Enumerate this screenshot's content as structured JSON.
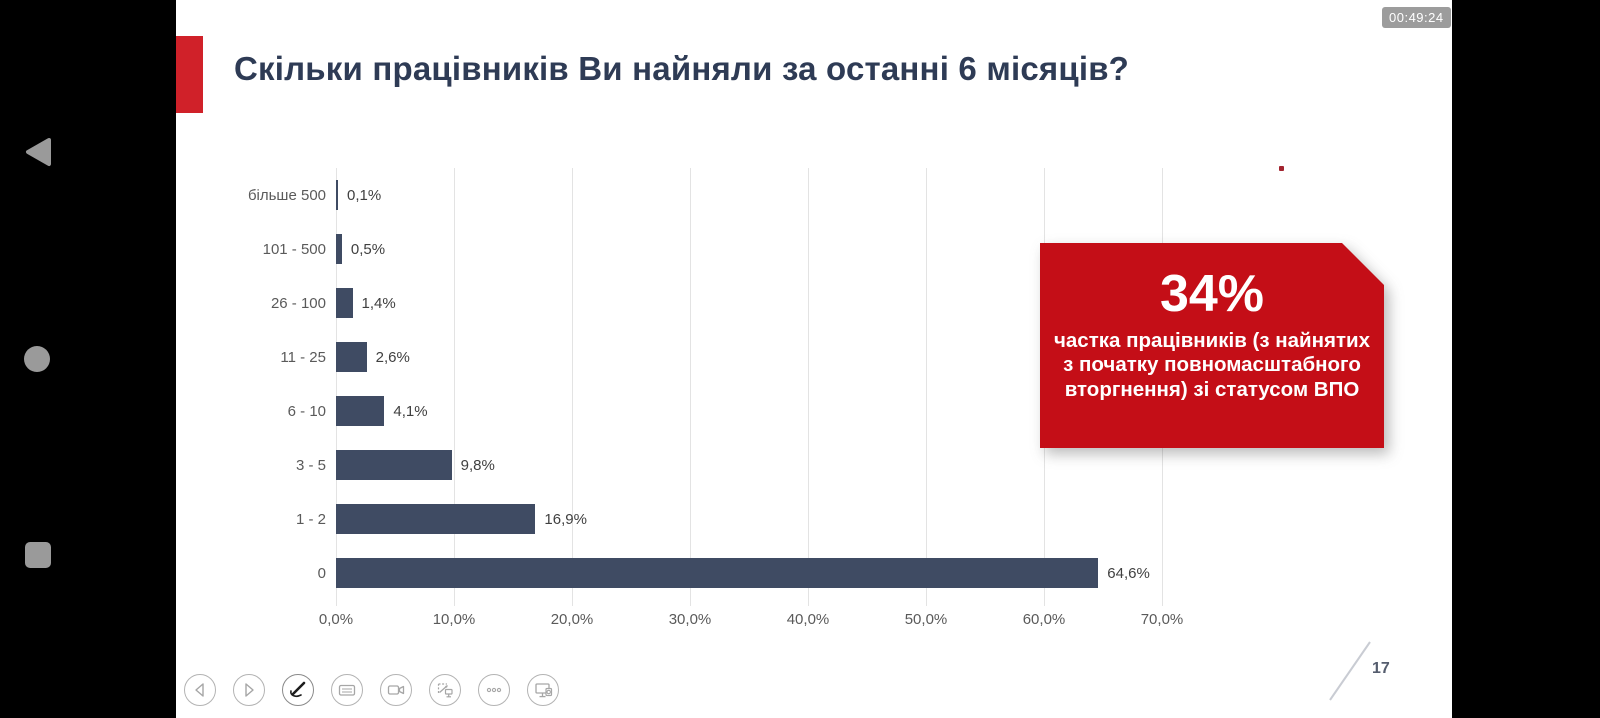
{
  "device": {
    "clock": "00:49:24",
    "page_number": "17",
    "nav": {
      "back": "back",
      "home": "home",
      "recents": "recents"
    }
  },
  "slide": {
    "title": "Скільки працівників Ви найняли за останні 6 місяців?"
  },
  "chart_data": {
    "type": "bar",
    "orientation": "horizontal",
    "title": "Скільки працівників Ви найняли за останні 6 місяців?",
    "categories": [
      "більше 500",
      "101 - 500",
      "26 - 100",
      "11 - 25",
      "6 - 10",
      "3 - 5",
      "1 - 2",
      "0"
    ],
    "values": [
      0.1,
      0.5,
      1.4,
      2.6,
      4.1,
      9.8,
      16.9,
      64.6
    ],
    "value_labels": [
      "0,1%",
      "0,5%",
      "1,4%",
      "2,6%",
      "4,1%",
      "9,8%",
      "16,9%",
      "64,6%"
    ],
    "x_tick_labels": [
      "0,0%",
      "10,0%",
      "20,0%",
      "30,0%",
      "40,0%",
      "50,0%",
      "60,0%",
      "70,0%"
    ],
    "xlim": [
      0,
      70
    ],
    "grid": true,
    "legend": false,
    "bar_color": "#3f4b63"
  },
  "callout": {
    "headline": "34%",
    "body": "частка працівників (з найнятих з початку повномасштабного вторгнення) ",
    "body_bold": "зі статусом ВПО"
  },
  "toolbar": {
    "buttons": [
      "previous-slide",
      "next-slide",
      "pen-tool",
      "keyboard",
      "camera",
      "present-pointer",
      "more-options",
      "cast-to-screen"
    ]
  },
  "colors": {
    "bar": "#3f4b63",
    "title": "#2e3b55",
    "accent_red": "#d02129",
    "callout_red": "#c40e17",
    "gridline": "#e3e3e3",
    "clock_bg": "#9c9c9c"
  }
}
